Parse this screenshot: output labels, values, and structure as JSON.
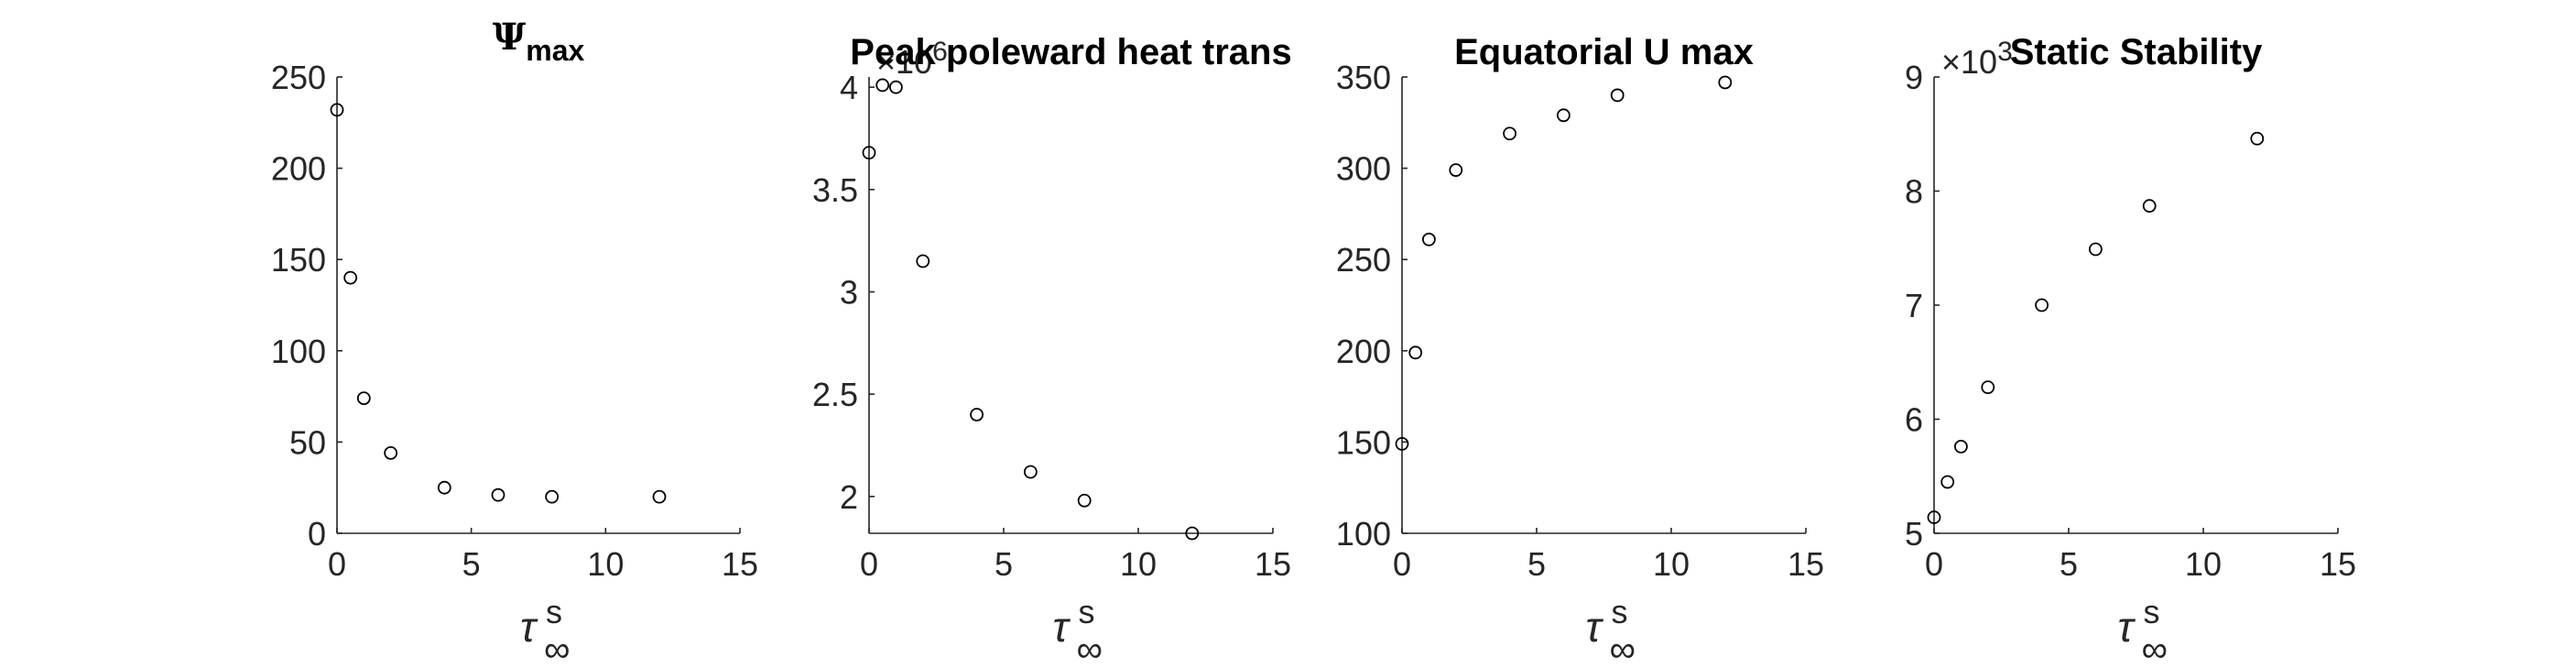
{
  "chart_data": [
    {
      "type": "scatter",
      "title": "Ψ",
      "title_sub": "max",
      "xlabel": "τ",
      "xlabel_sup": "s",
      "xlabel_sub": "∞",
      "xlim": [
        0,
        15
      ],
      "ylim": [
        0,
        250
      ],
      "xticks": [
        0,
        5,
        10,
        15
      ],
      "yticks": [
        0,
        50,
        100,
        150,
        200,
        250
      ],
      "ytick_labels": [
        "0",
        "50",
        "100",
        "150",
        "200",
        "250"
      ],
      "exponent": null,
      "points": [
        {
          "x": 0,
          "y": 232
        },
        {
          "x": 0.5,
          "y": 140
        },
        {
          "x": 1,
          "y": 74
        },
        {
          "x": 2,
          "y": 44
        },
        {
          "x": 4,
          "y": 25
        },
        {
          "x": 6,
          "y": 21
        },
        {
          "x": 8,
          "y": 20
        },
        {
          "x": 12,
          "y": 20
        }
      ]
    },
    {
      "type": "scatter",
      "title": "Peak poleward heat trans",
      "xlabel": "τ",
      "xlabel_sup": "s",
      "xlabel_sub": "∞",
      "xlim": [
        0,
        15
      ],
      "ylim": [
        1.82,
        4.05
      ],
      "xticks": [
        0,
        5,
        10,
        15
      ],
      "yticks": [
        2,
        2.5,
        3,
        3.5,
        4
      ],
      "ytick_labels": [
        "2",
        "2.5",
        "3",
        "3.5",
        "4"
      ],
      "exponent": {
        "base": "×10",
        "power": "6"
      },
      "points": [
        {
          "x": 0,
          "y": 3.68
        },
        {
          "x": 0.5,
          "y": 4.01
        },
        {
          "x": 1,
          "y": 4.0
        },
        {
          "x": 2,
          "y": 3.15
        },
        {
          "x": 4,
          "y": 2.4
        },
        {
          "x": 6,
          "y": 2.12
        },
        {
          "x": 8,
          "y": 1.98
        },
        {
          "x": 12,
          "y": 1.82
        }
      ]
    },
    {
      "type": "scatter",
      "title": "Equatorial U max",
      "xlabel": "τ",
      "xlabel_sup": "s",
      "xlabel_sub": "∞",
      "xlim": [
        0,
        15
      ],
      "ylim": [
        100,
        350
      ],
      "xticks": [
        0,
        5,
        10,
        15
      ],
      "yticks": [
        100,
        150,
        200,
        250,
        300,
        350
      ],
      "ytick_labels": [
        "100",
        "150",
        "200",
        "250",
        "300",
        "350"
      ],
      "exponent": null,
      "points": [
        {
          "x": 0,
          "y": 149
        },
        {
          "x": 0.5,
          "y": 199
        },
        {
          "x": 1,
          "y": 261
        },
        {
          "x": 2,
          "y": 299
        },
        {
          "x": 4,
          "y": 319
        },
        {
          "x": 6,
          "y": 329
        },
        {
          "x": 8,
          "y": 340
        },
        {
          "x": 12,
          "y": 347
        }
      ]
    },
    {
      "type": "scatter",
      "title": "Static Stability",
      "xlabel": "τ",
      "xlabel_sup": "s",
      "xlabel_sub": "∞",
      "xlim": [
        0,
        15
      ],
      "ylim": [
        5,
        9
      ],
      "xticks": [
        0,
        5,
        10,
        15
      ],
      "yticks": [
        5,
        6,
        7,
        8,
        9
      ],
      "ytick_labels": [
        "5",
        "6",
        "7",
        "8",
        "9"
      ],
      "exponent": {
        "base": "×10",
        "power": "3"
      },
      "points": [
        {
          "x": 0,
          "y": 5.14
        },
        {
          "x": 0.5,
          "y": 5.45
        },
        {
          "x": 1,
          "y": 5.76
        },
        {
          "x": 2,
          "y": 6.28
        },
        {
          "x": 4,
          "y": 7.0
        },
        {
          "x": 6,
          "y": 7.49
        },
        {
          "x": 8,
          "y": 7.87
        },
        {
          "x": 12,
          "y": 8.46
        }
      ]
    }
  ]
}
